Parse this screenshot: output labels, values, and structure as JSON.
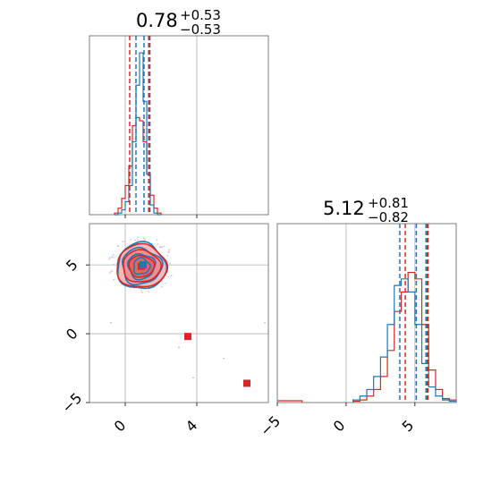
{
  "colors": {
    "blue": "#1f77b4",
    "red": "#d62728",
    "red_fill": "#f08080"
  },
  "titles": {
    "param1": {
      "value": "0.78",
      "plus": "+0.53",
      "minus": "−0.53"
    },
    "param2": {
      "value": "5.12",
      "plus": "+0.81",
      "minus": "−0.82"
    }
  },
  "chart_data": [
    {
      "type": "histogram",
      "panel": "param1-marginal",
      "xlim": [
        -2,
        8
      ],
      "grid": true,
      "bins": [
        -0.6,
        -0.4,
        -0.2,
        0.0,
        0.2,
        0.4,
        0.6,
        0.8,
        1.0,
        1.2,
        1.4,
        1.6,
        1.8,
        2.0
      ],
      "series": [
        {
          "color": "red",
          "counts": [
            0.01,
            0.04,
            0.1,
            0.18,
            0.3,
            0.55,
            0.6,
            0.58,
            0.45,
            0.25,
            0.12,
            0.04,
            0.01
          ]
        },
        {
          "color": "blue",
          "counts": [
            0.0,
            0.01,
            0.03,
            0.08,
            0.18,
            0.45,
            0.8,
            1.0,
            0.7,
            0.25,
            0.06,
            0.01,
            0.0
          ]
        }
      ],
      "quantile_lines": {
        "red": [
          0.25,
          1.31,
          1.35
        ],
        "blue": [
          0.6,
          1.05,
          1.38
        ]
      }
    },
    {
      "type": "scatter",
      "panel": "param1-vs-param2",
      "xlim": [
        -2,
        8
      ],
      "ylim": [
        -5,
        8
      ],
      "xticks": [
        "0",
        "4"
      ],
      "yticks": [
        "−5",
        "0",
        "5"
      ],
      "grid": true,
      "markers": [
        {
          "color": "red",
          "shape": "square",
          "x": 0.9,
          "y": 4.9
        },
        {
          "color": "blue",
          "shape": "square",
          "x": 1.0,
          "y": 5.0
        },
        {
          "color": "red",
          "shape": "square",
          "x": 3.5,
          "y": -0.2
        },
        {
          "color": "red",
          "shape": "square",
          "x": 6.8,
          "y": -3.6
        }
      ]
    },
    {
      "type": "histogram",
      "panel": "param2-marginal",
      "xlim": [
        -5,
        8
      ],
      "xticks": [
        "−5",
        "0",
        "5"
      ],
      "grid": true,
      "bins": [
        0.5,
        1.0,
        1.5,
        2.0,
        2.5,
        3.0,
        3.5,
        4.0,
        4.5,
        5.0,
        5.5,
        6.0,
        6.5,
        7.0,
        7.5,
        8.0
      ],
      "series": [
        {
          "color": "red",
          "counts": [
            0.01,
            0.02,
            0.05,
            0.1,
            0.2,
            0.4,
            0.7,
            0.85,
            1.0,
            0.95,
            0.6,
            0.25,
            0.1,
            0.03,
            0.02
          ]
        },
        {
          "color": "blue",
          "counts": [
            0.02,
            0.05,
            0.1,
            0.2,
            0.35,
            0.6,
            0.9,
            0.95,
            0.85,
            0.6,
            0.3,
            0.12,
            0.05,
            0.02,
            0.01
          ]
        }
      ],
      "quantile_lines": {
        "red": [
          4.3,
          5.9,
          5.95
        ],
        "blue": [
          3.9,
          5.1,
          5.8
        ]
      }
    }
  ]
}
